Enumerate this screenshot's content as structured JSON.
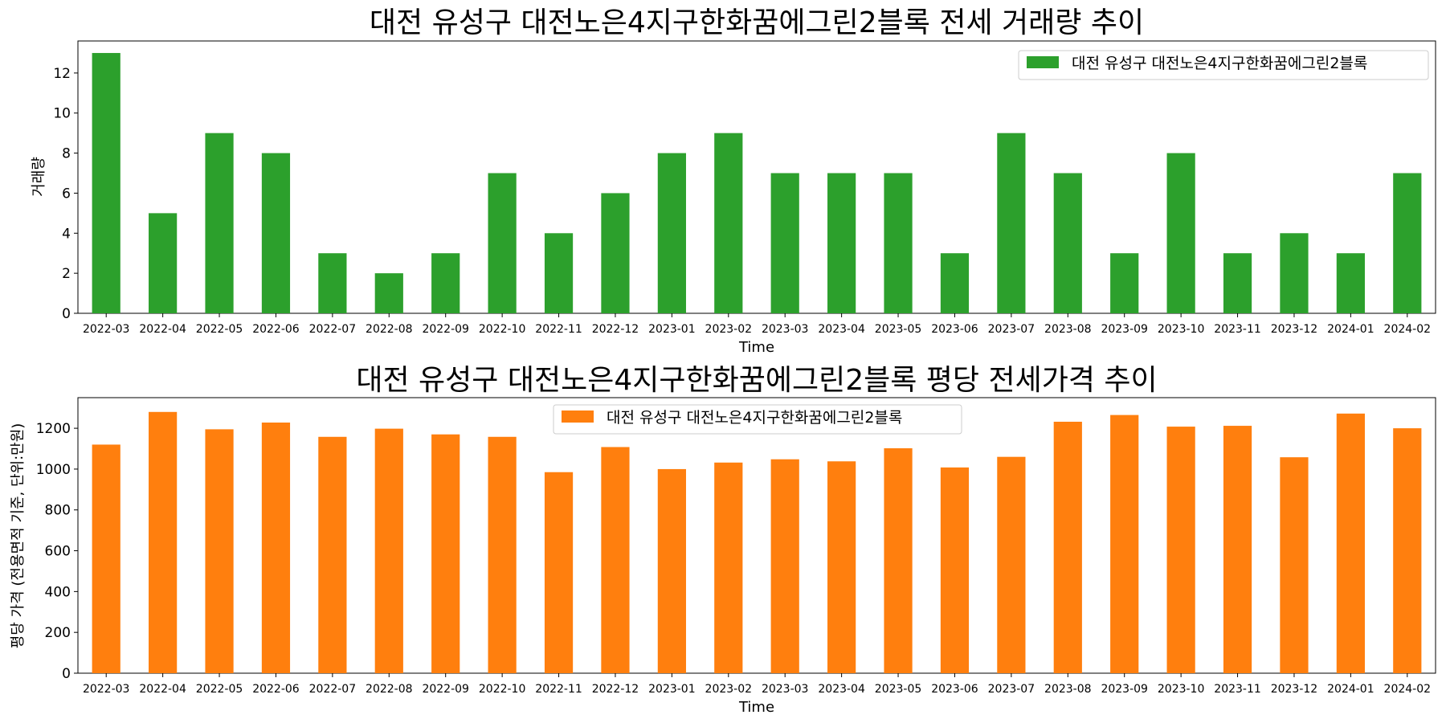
{
  "chart_data": [
    {
      "type": "bar",
      "title": "대전 유성구 대전노은4지구한화꿈에그린2블록 전세 거래량 추이",
      "xlabel": "Time",
      "ylabel": "거래량",
      "ylim": [
        0,
        13.6
      ],
      "yticks": [
        "0",
        "2",
        "4",
        "6",
        "8",
        "10",
        "12"
      ],
      "legend_position": "top-right",
      "color": "#2ca02c",
      "categories": [
        "2022-03",
        "2022-04",
        "2022-05",
        "2022-06",
        "2022-07",
        "2022-08",
        "2022-09",
        "2022-10",
        "2022-11",
        "2022-12",
        "2023-01",
        "2023-02",
        "2023-03",
        "2023-04",
        "2023-05",
        "2023-06",
        "2023-07",
        "2023-08",
        "2023-09",
        "2023-10",
        "2023-11",
        "2023-12",
        "2024-01",
        "2024-02"
      ],
      "series": [
        {
          "name": "대전 유성구 대전노은4지구한화꿈에그린2블록",
          "values": [
            13,
            5,
            9,
            8,
            3,
            2,
            3,
            7,
            4,
            6,
            8,
            9,
            7,
            7,
            7,
            3,
            9,
            7,
            3,
            8,
            3,
            4,
            3,
            7
          ]
        }
      ]
    },
    {
      "type": "bar",
      "title": "대전 유성구 대전노은4지구한화꿈에그린2블록 평당 전세가격 추이",
      "xlabel": "Time",
      "ylabel": "평당 가격 (전용면적 기준, 단위:만원)",
      "ylim": [
        0,
        1350
      ],
      "yticks": [
        "0",
        "200",
        "400",
        "600",
        "800",
        "1000",
        "1200"
      ],
      "legend_position": "top-center",
      "color": "#ff7f0e",
      "categories": [
        "2022-03",
        "2022-04",
        "2022-05",
        "2022-06",
        "2022-07",
        "2022-08",
        "2022-09",
        "2022-10",
        "2022-11",
        "2022-12",
        "2023-01",
        "2023-02",
        "2023-03",
        "2023-04",
        "2023-05",
        "2023-06",
        "2023-07",
        "2023-08",
        "2023-09",
        "2023-10",
        "2023-11",
        "2023-12",
        "2024-01",
        "2024-02"
      ],
      "series": [
        {
          "name": "대전 유성구 대전노은4지구한화꿈에그린2블록",
          "values": [
            1120,
            1280,
            1195,
            1228,
            1158,
            1198,
            1170,
            1158,
            985,
            1108,
            1000,
            1032,
            1048,
            1038,
            1102,
            1008,
            1060,
            1232,
            1265,
            1208,
            1212,
            1058,
            1272,
            1200
          ]
        }
      ]
    }
  ]
}
